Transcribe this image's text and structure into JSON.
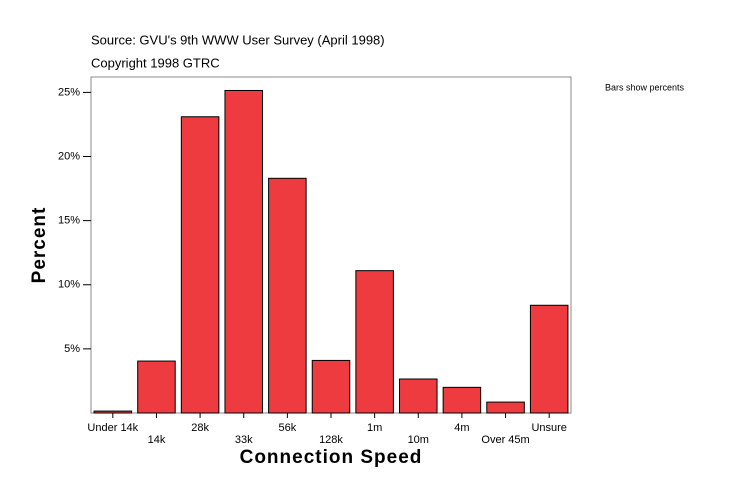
{
  "chart_data": {
    "type": "bar",
    "title": "Source: GVU's 9th WWW User Survey (April 1998)",
    "subtitle": "Copyright 1998 GTRC",
    "annotation": "Bars show percents",
    "x_label": "Connection Speed",
    "y_label": "Percent",
    "categories": [
      "Under 14k",
      "14k",
      "28k",
      "33k",
      "56k",
      "128k",
      "1m",
      "10m",
      "4m",
      "Over 45m",
      "Unsure"
    ],
    "values": [
      0.15,
      4.05,
      23.1,
      25.15,
      18.3,
      4.1,
      11.1,
      2.65,
      2.0,
      0.85,
      8.4
    ],
    "color": "#ee3b3f",
    "ylim": [
      0,
      26.2
    ],
    "yticks": [
      {
        "value": 5,
        "label": "5%"
      },
      {
        "value": 10,
        "label": "10%"
      },
      {
        "value": 15,
        "label": "15%"
      },
      {
        "value": 20,
        "label": "20%"
      },
      {
        "value": 25,
        "label": "25%"
      }
    ]
  }
}
